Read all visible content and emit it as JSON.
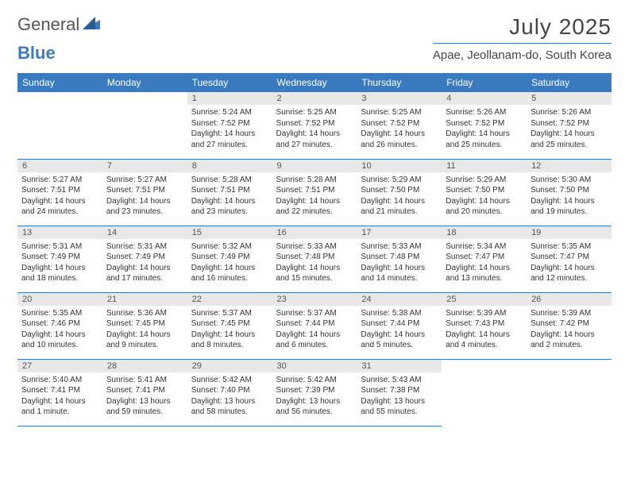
{
  "logo": {
    "text_main": "General",
    "text_blue": "Blue"
  },
  "title": "July 2025",
  "location": "Apae, Jeollanam-do, South Korea",
  "colors": {
    "header_bg": "#3a7bbf",
    "header_text": "#ffffff",
    "daynum_bg": "#e8e8e8",
    "cell_border": "#3a7bbf",
    "page_bg": "#ffffff",
    "body_text": "#333333",
    "title_text": "#454545"
  },
  "fonts": {
    "title_size": 28,
    "location_size": 15,
    "dayheader_size": 12,
    "cell_size": 10
  },
  "day_headers": [
    "Sunday",
    "Monday",
    "Tuesday",
    "Wednesday",
    "Thursday",
    "Friday",
    "Saturday"
  ],
  "weeks": [
    [
      null,
      null,
      {
        "n": "1",
        "sr": "Sunrise: 5:24 AM",
        "ss": "Sunset: 7:52 PM",
        "dl": "Daylight: 14 hours and 27 minutes."
      },
      {
        "n": "2",
        "sr": "Sunrise: 5:25 AM",
        "ss": "Sunset: 7:52 PM",
        "dl": "Daylight: 14 hours and 27 minutes."
      },
      {
        "n": "3",
        "sr": "Sunrise: 5:25 AM",
        "ss": "Sunset: 7:52 PM",
        "dl": "Daylight: 14 hours and 26 minutes."
      },
      {
        "n": "4",
        "sr": "Sunrise: 5:26 AM",
        "ss": "Sunset: 7:52 PM",
        "dl": "Daylight: 14 hours and 25 minutes."
      },
      {
        "n": "5",
        "sr": "Sunrise: 5:26 AM",
        "ss": "Sunset: 7:52 PM",
        "dl": "Daylight: 14 hours and 25 minutes."
      }
    ],
    [
      {
        "n": "6",
        "sr": "Sunrise: 5:27 AM",
        "ss": "Sunset: 7:51 PM",
        "dl": "Daylight: 14 hours and 24 minutes."
      },
      {
        "n": "7",
        "sr": "Sunrise: 5:27 AM",
        "ss": "Sunset: 7:51 PM",
        "dl": "Daylight: 14 hours and 23 minutes."
      },
      {
        "n": "8",
        "sr": "Sunrise: 5:28 AM",
        "ss": "Sunset: 7:51 PM",
        "dl": "Daylight: 14 hours and 23 minutes."
      },
      {
        "n": "9",
        "sr": "Sunrise: 5:28 AM",
        "ss": "Sunset: 7:51 PM",
        "dl": "Daylight: 14 hours and 22 minutes."
      },
      {
        "n": "10",
        "sr": "Sunrise: 5:29 AM",
        "ss": "Sunset: 7:50 PM",
        "dl": "Daylight: 14 hours and 21 minutes."
      },
      {
        "n": "11",
        "sr": "Sunrise: 5:29 AM",
        "ss": "Sunset: 7:50 PM",
        "dl": "Daylight: 14 hours and 20 minutes."
      },
      {
        "n": "12",
        "sr": "Sunrise: 5:30 AM",
        "ss": "Sunset: 7:50 PM",
        "dl": "Daylight: 14 hours and 19 minutes."
      }
    ],
    [
      {
        "n": "13",
        "sr": "Sunrise: 5:31 AM",
        "ss": "Sunset: 7:49 PM",
        "dl": "Daylight: 14 hours and 18 minutes."
      },
      {
        "n": "14",
        "sr": "Sunrise: 5:31 AM",
        "ss": "Sunset: 7:49 PM",
        "dl": "Daylight: 14 hours and 17 minutes."
      },
      {
        "n": "15",
        "sr": "Sunrise: 5:32 AM",
        "ss": "Sunset: 7:49 PM",
        "dl": "Daylight: 14 hours and 16 minutes."
      },
      {
        "n": "16",
        "sr": "Sunrise: 5:33 AM",
        "ss": "Sunset: 7:48 PM",
        "dl": "Daylight: 14 hours and 15 minutes."
      },
      {
        "n": "17",
        "sr": "Sunrise: 5:33 AM",
        "ss": "Sunset: 7:48 PM",
        "dl": "Daylight: 14 hours and 14 minutes."
      },
      {
        "n": "18",
        "sr": "Sunrise: 5:34 AM",
        "ss": "Sunset: 7:47 PM",
        "dl": "Daylight: 14 hours and 13 minutes."
      },
      {
        "n": "19",
        "sr": "Sunrise: 5:35 AM",
        "ss": "Sunset: 7:47 PM",
        "dl": "Daylight: 14 hours and 12 minutes."
      }
    ],
    [
      {
        "n": "20",
        "sr": "Sunrise: 5:35 AM",
        "ss": "Sunset: 7:46 PM",
        "dl": "Daylight: 14 hours and 10 minutes."
      },
      {
        "n": "21",
        "sr": "Sunrise: 5:36 AM",
        "ss": "Sunset: 7:45 PM",
        "dl": "Daylight: 14 hours and 9 minutes."
      },
      {
        "n": "22",
        "sr": "Sunrise: 5:37 AM",
        "ss": "Sunset: 7:45 PM",
        "dl": "Daylight: 14 hours and 8 minutes."
      },
      {
        "n": "23",
        "sr": "Sunrise: 5:37 AM",
        "ss": "Sunset: 7:44 PM",
        "dl": "Daylight: 14 hours and 6 minutes."
      },
      {
        "n": "24",
        "sr": "Sunrise: 5:38 AM",
        "ss": "Sunset: 7:44 PM",
        "dl": "Daylight: 14 hours and 5 minutes."
      },
      {
        "n": "25",
        "sr": "Sunrise: 5:39 AM",
        "ss": "Sunset: 7:43 PM",
        "dl": "Daylight: 14 hours and 4 minutes."
      },
      {
        "n": "26",
        "sr": "Sunrise: 5:39 AM",
        "ss": "Sunset: 7:42 PM",
        "dl": "Daylight: 14 hours and 2 minutes."
      }
    ],
    [
      {
        "n": "27",
        "sr": "Sunrise: 5:40 AM",
        "ss": "Sunset: 7:41 PM",
        "dl": "Daylight: 14 hours and 1 minute."
      },
      {
        "n": "28",
        "sr": "Sunrise: 5:41 AM",
        "ss": "Sunset: 7:41 PM",
        "dl": "Daylight: 13 hours and 59 minutes."
      },
      {
        "n": "29",
        "sr": "Sunrise: 5:42 AM",
        "ss": "Sunset: 7:40 PM",
        "dl": "Daylight: 13 hours and 58 minutes."
      },
      {
        "n": "30",
        "sr": "Sunrise: 5:42 AM",
        "ss": "Sunset: 7:39 PM",
        "dl": "Daylight: 13 hours and 56 minutes."
      },
      {
        "n": "31",
        "sr": "Sunrise: 5:43 AM",
        "ss": "Sunset: 7:38 PM",
        "dl": "Daylight: 13 hours and 55 minutes."
      },
      null,
      null
    ]
  ]
}
